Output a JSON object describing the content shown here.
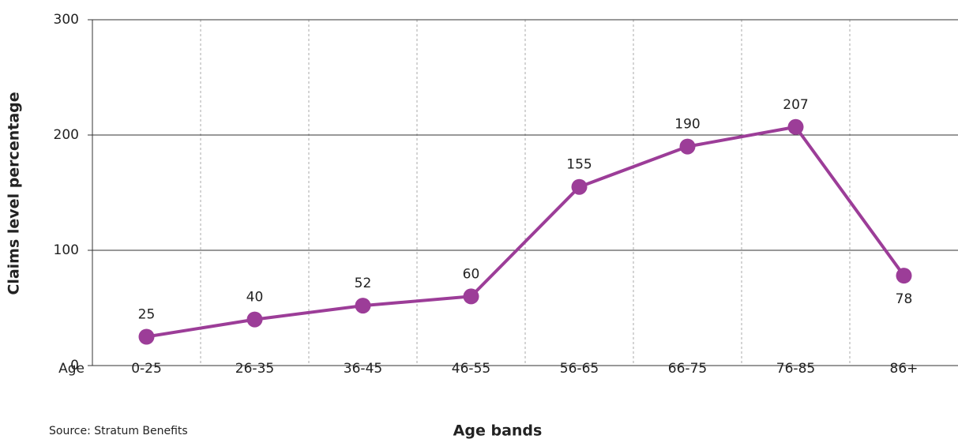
{
  "chart_data": {
    "type": "line",
    "x_label_prefix": "Age",
    "categories": [
      "0-25",
      "26-35",
      "36-45",
      "46-55",
      "56-65",
      "66-75",
      "76-85",
      "86+"
    ],
    "series": [
      {
        "name": "Claims level percentage",
        "color": "#9c3d98",
        "values": [
          25,
          40,
          52,
          60,
          155,
          190,
          207,
          78
        ]
      }
    ],
    "ylim": [
      0,
      300
    ],
    "yticks": [
      0,
      100,
      200,
      300
    ],
    "grid": true,
    "ylabel": "Claims level percentage",
    "xlabel": "Age bands",
    "source": "Source: Stratum Benefits"
  }
}
